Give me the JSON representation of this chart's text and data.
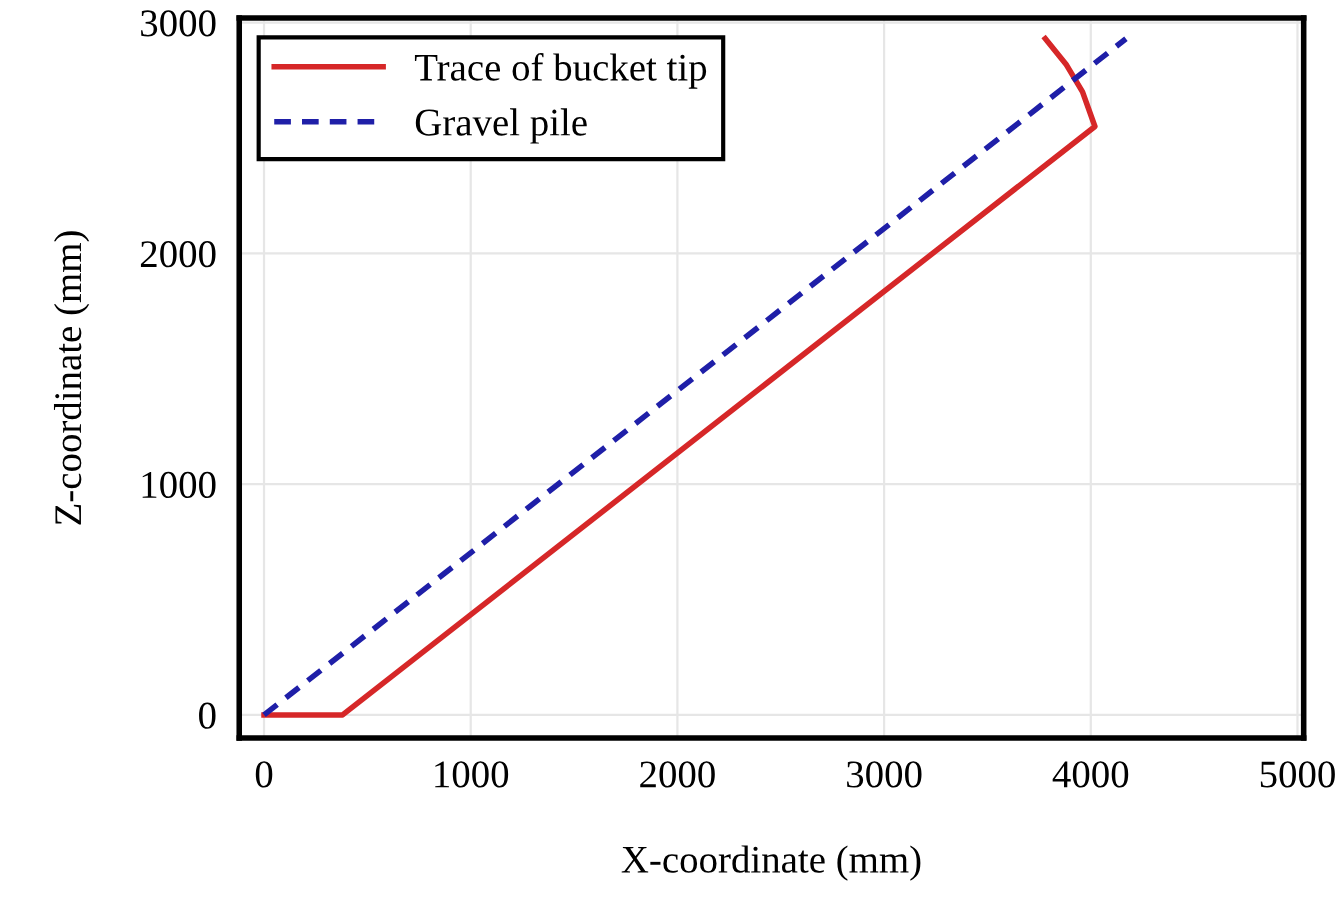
{
  "chart_data": {
    "type": "line",
    "xlabel": "X-coordinate (mm)",
    "ylabel": "Z-coordinate (mm)",
    "series": [
      {
        "name": "Trace of bucket tip",
        "color": "#d62728",
        "line_style": "solid",
        "x": [
          0,
          380,
          4020,
          3960,
          3880,
          3780
        ],
        "values": [
          0,
          0,
          2550,
          2700,
          2820,
          2930
        ]
      },
      {
        "name": "Gravel pile",
        "color": "#1f1fa8",
        "line_style": "dashed",
        "x": [
          0,
          4170
        ],
        "values": [
          0,
          2930
        ]
      }
    ],
    "xlim": [
      -120,
      5030
    ],
    "ylim": [
      -100,
      3020
    ],
    "xticks": [
      0,
      1000,
      2000,
      3000,
      4000,
      5000
    ],
    "yticks": [
      0,
      1000,
      2000,
      3000
    ],
    "grid": true,
    "legend": "top left",
    "marker": "none"
  }
}
